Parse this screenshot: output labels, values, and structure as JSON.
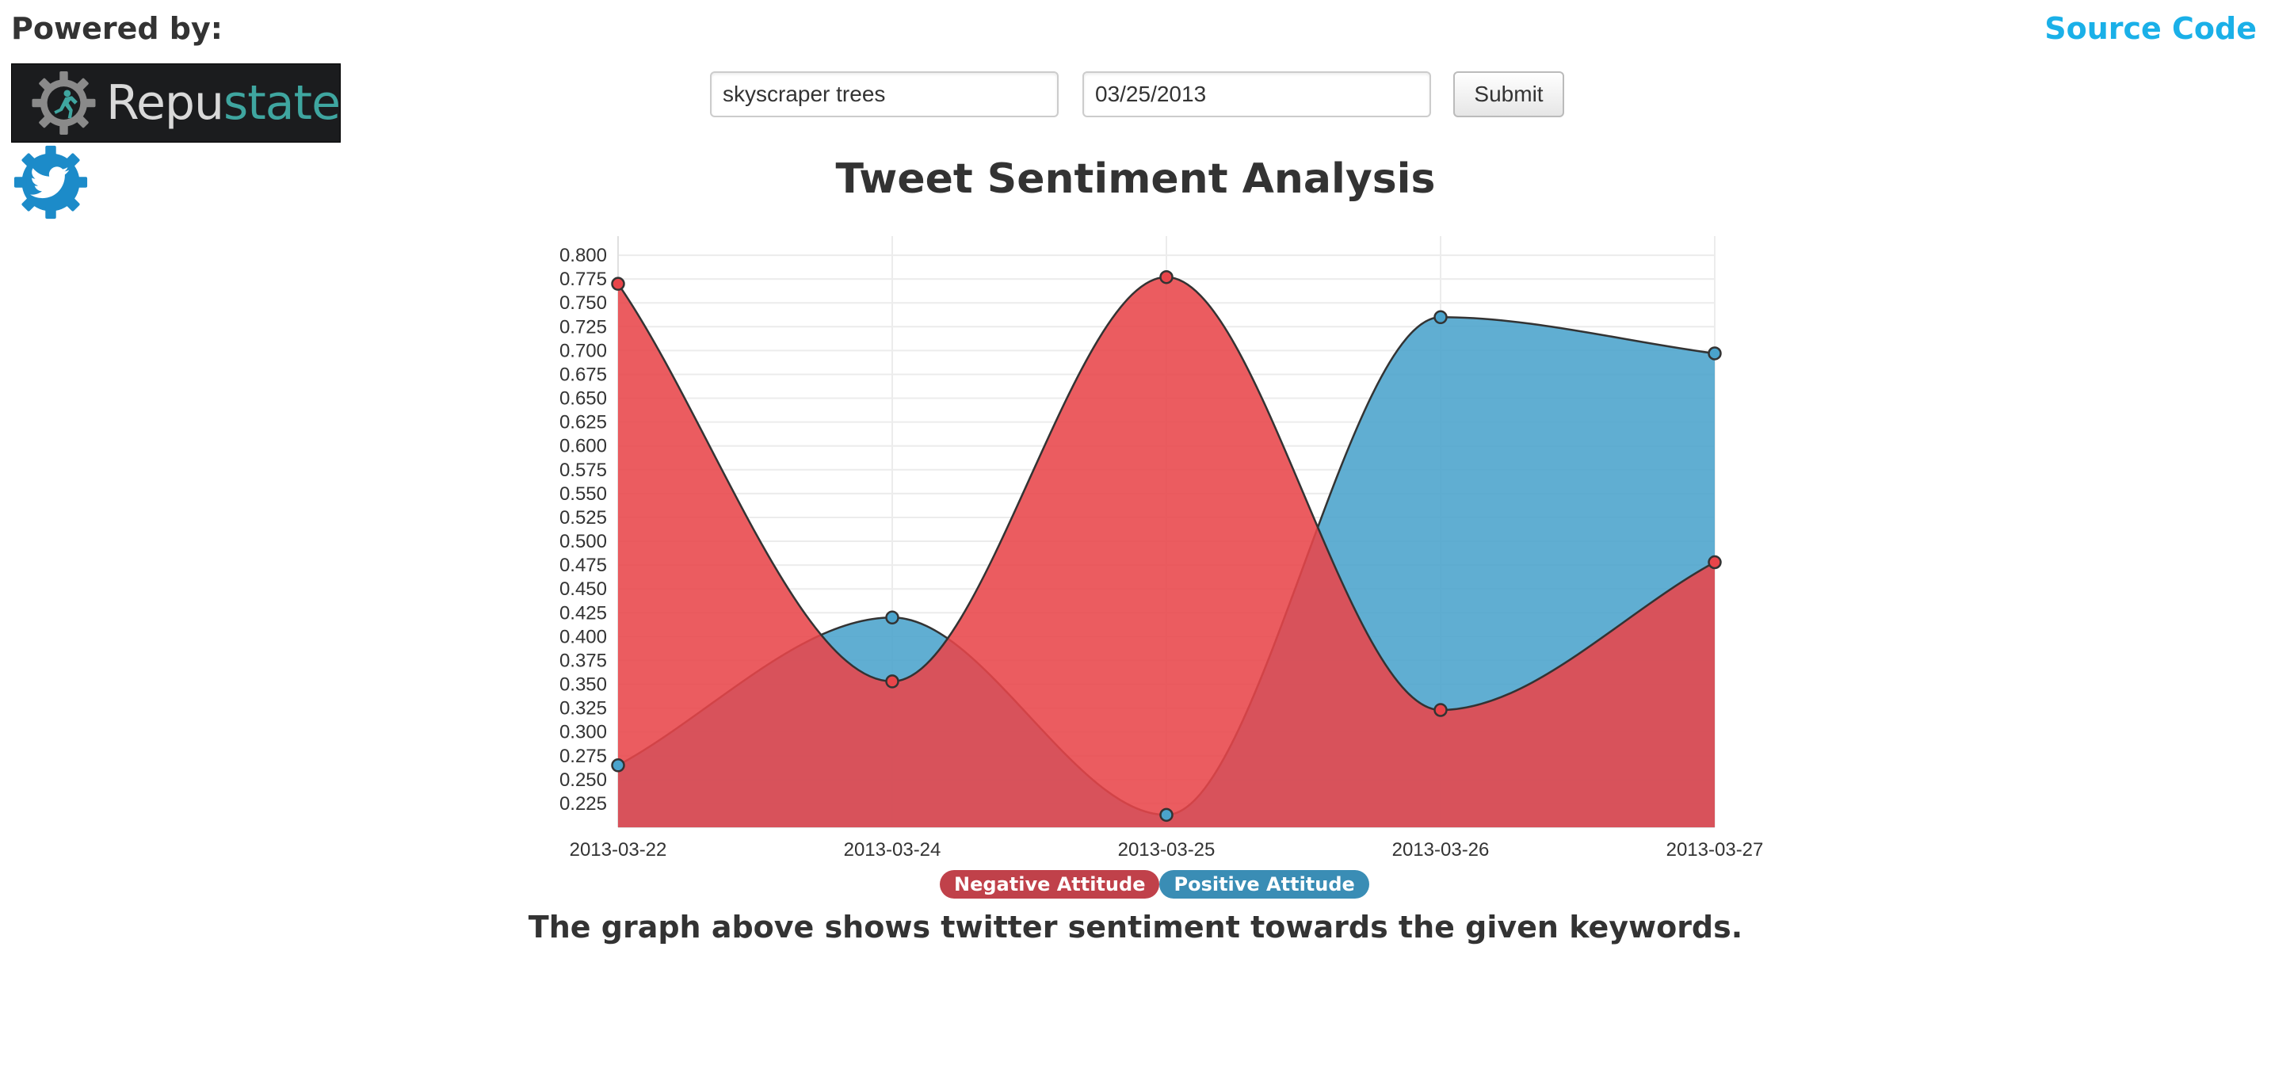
{
  "header": {
    "powered_by": "Powered by:",
    "source_code_link": "Source Code",
    "source_code_color": "#1ab0e8"
  },
  "logos": {
    "repustate_text_main": "Repu",
    "repustate_text_accent": "state",
    "repustate_icon": "gear-runner-icon",
    "twitter_icon": "twitter-bird-gear-icon"
  },
  "form": {
    "keyword_value": "skyscraper trees",
    "date_value": "03/25/2013",
    "submit_label": "Submit"
  },
  "chart_title": "Tweet Sentiment Analysis",
  "caption": "The graph above shows twitter sentiment towards the given keywords.",
  "chart_data": {
    "type": "area",
    "categories": [
      "2013-03-22",
      "2013-03-24",
      "2013-03-25",
      "2013-03-26",
      "2013-03-27"
    ],
    "series": [
      {
        "name": "Negative Attitude",
        "color": "#e8454a",
        "values": [
          0.77,
          0.353,
          0.777,
          0.323,
          0.478
        ]
      },
      {
        "name": "Positive Attitude",
        "color": "#4aa3cc",
        "values": [
          0.265,
          0.42,
          0.213,
          0.735,
          0.697
        ]
      }
    ],
    "yticks": [
      "0.800",
      "0.775",
      "0.750",
      "0.725",
      "0.700",
      "0.675",
      "0.650",
      "0.625",
      "0.600",
      "0.575",
      "0.550",
      "0.525",
      "0.500",
      "0.475",
      "0.450",
      "0.425",
      "0.400",
      "0.375",
      "0.350",
      "0.325",
      "0.300",
      "0.275",
      "0.250",
      "0.225"
    ],
    "ylim": [
      0.2,
      0.82
    ],
    "grid": true,
    "interpolation": "smooth",
    "legend_position": "bottom-center"
  }
}
